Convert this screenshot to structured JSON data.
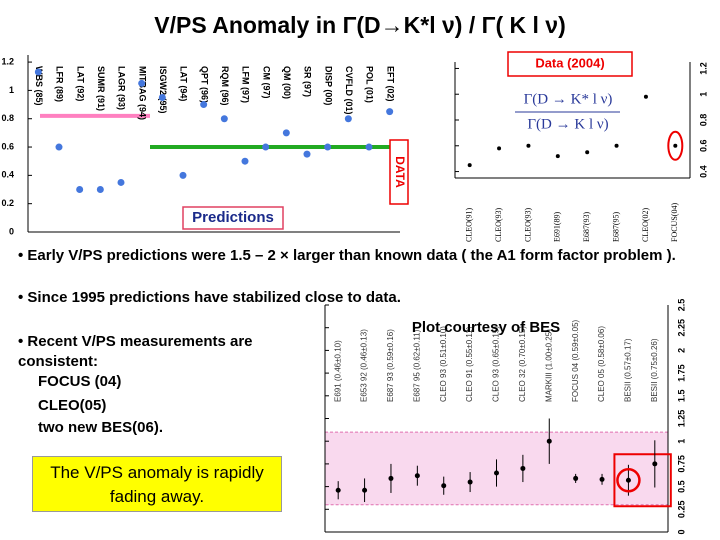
{
  "title": "V/PS Anomaly in Γ(D→K*l ν) / Γ( K l ν)",
  "bullets": [
    "• Early V/PS predictions were 1.5 – 2 × larger than known data ( the A1 form factor problem ).",
    "• Since 1995 predictions have stabilized close to data."
  ],
  "recent": {
    "lead": "• Recent V/PS measurements are consistent:",
    "items": [
      "FOCUS (04)",
      "CLEO(05)",
      "two new BES(06)."
    ]
  },
  "conclusion": "The V/PS anomaly is rapidly fading away.",
  "chart_data": [
    {
      "type": "dot",
      "annotations": [
        "Predictions",
        "DATA"
      ],
      "categories": [
        "WBS (85)",
        "LFR (89)",
        "LAT (92)",
        "SUMR (91)",
        "LAGR (93)",
        "MITBAG (94)",
        "ISGW2 (95)",
        "LAT (94)",
        "QPT (96)",
        "RQM (96)",
        "LFM (97)",
        "CM (97)",
        "QM (00)",
        "SR (97)",
        "DISP (00)",
        "CVFLD (01)",
        "POL (01)",
        "EFT (02)"
      ],
      "values": [
        1.13,
        0.6,
        0.3,
        0.3,
        0.35,
        1.05,
        0.95,
        0.4,
        0.9,
        0.8,
        0.5,
        0.6,
        0.7,
        0.55,
        0.6,
        0.8,
        0.6,
        0.85
      ],
      "color": "#4477dd",
      "ylim": [
        0,
        1.25
      ],
      "yticks": [
        0,
        0.2,
        0.4,
        0.6,
        0.8,
        1,
        1.2
      ],
      "reference_lines": [
        {
          "value": 0.82,
          "color": "#ff80c0"
        },
        {
          "value": 0.6,
          "color": "#22aa22"
        }
      ]
    },
    {
      "type": "dot",
      "title": "Data (2004)",
      "formula_numerator": "Γ(D → K* l ν)",
      "formula_denominator": "Γ(D → K l ν)",
      "categories": [
        "CLEO(91)",
        "CLEO(93)",
        "CLEO(93)",
        "E691(89)",
        "E687(93)",
        "E687(95)",
        "CLEO(02)",
        "FOCUS(04)"
      ],
      "values": [
        0.45,
        0.58,
        0.6,
        0.52,
        0.55,
        0.6,
        0.98,
        0.6
      ],
      "color": "#000000",
      "ylim": [
        0.35,
        1.25
      ],
      "yticks": [
        0.4,
        0.6,
        0.8,
        1,
        1.2
      ]
    },
    {
      "type": "dot",
      "title": "Plot courtesy of BES",
      "categories": [
        "E691 (0.46±0.10)",
        "E653 92 (0.46±0.13)",
        "E687 93 (0.59±0.16)",
        "E687 95 (0.62±0.11)",
        "CLEO 93 (0.51±0.10)",
        "CLEO 91 (0.55±0.11)",
        "CLEO 93 (0.65±0.15)",
        "CLEO 32 (0.70±0.15)",
        "MARKIII (1.00±0.25)",
        "FOCUS 04 (0.59±0.05)",
        "CLEO 05 (0.58±0.06)",
        "BESII (0.57±0.17)",
        "BESII (0.75±0.26)"
      ],
      "values": [
        0.46,
        0.46,
        0.59,
        0.62,
        0.51,
        0.55,
        0.65,
        0.7,
        1.0,
        0.59,
        0.58,
        0.57,
        0.75
      ],
      "errors": [
        0.1,
        0.13,
        0.16,
        0.11,
        0.1,
        0.11,
        0.15,
        0.15,
        0.25,
        0.05,
        0.06,
        0.17,
        0.26
      ],
      "color": "#000000",
      "shaded_range": [
        0.3,
        1.1
      ],
      "ylim": [
        0,
        2.5
      ],
      "yticks": [
        0,
        0.25,
        0.5,
        0.75,
        1,
        1.25,
        1.5,
        1.75,
        2,
        2.25,
        2.5
      ]
    }
  ]
}
